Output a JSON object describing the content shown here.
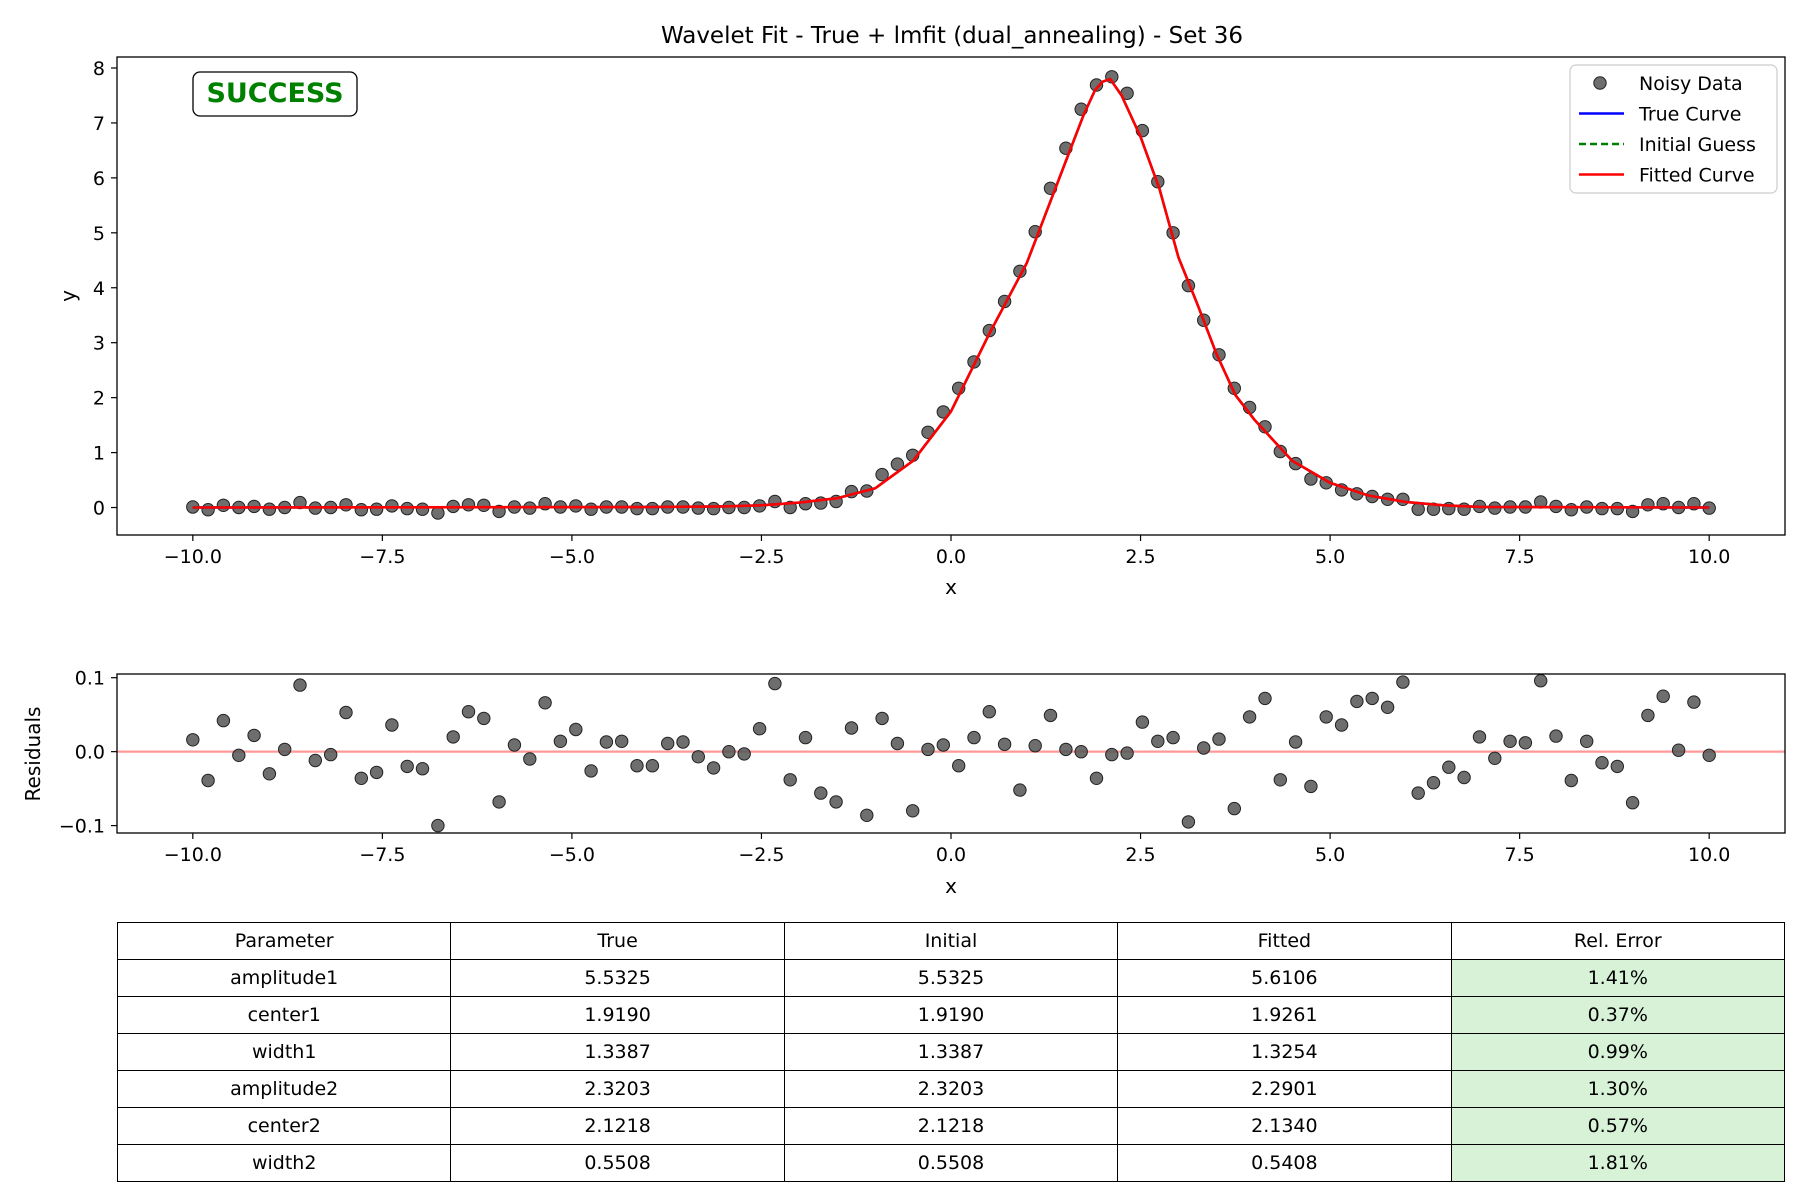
{
  "chart_data": [
    {
      "type": "scatter",
      "title": "Wavelet Fit - True + lmfit (dual_annealing) - Set 36",
      "xlabel": "x",
      "ylabel": "y",
      "xlim": [
        -11,
        11
      ],
      "ylim": [
        -0.5,
        8.2
      ],
      "xticks": [
        -10.0,
        -7.5,
        -5.0,
        -2.5,
        0.0,
        2.5,
        5.0,
        7.5,
        10.0
      ],
      "yticks": [
        0,
        1,
        2,
        3,
        4,
        5,
        6,
        7,
        8
      ],
      "grid": false,
      "legend_position": "top-right",
      "status_label": "SUCCESS",
      "colors": {
        "noisy": "#555555",
        "true": "#0000ff",
        "initial": "#008000",
        "fitted": "#ff0000",
        "status": "#008000"
      },
      "series": [
        {
          "name": "Noisy Data",
          "style": "markers",
          "x": [
            -10.0,
            -9.798,
            -9.596,
            -9.394,
            -9.192,
            -8.99,
            -8.788,
            -8.586,
            -8.384,
            -8.182,
            -7.98,
            -7.778,
            -7.576,
            -7.374,
            -7.172,
            -6.97,
            -6.768,
            -6.566,
            -6.364,
            -6.162,
            -5.96,
            -5.758,
            -5.556,
            -5.354,
            -5.152,
            -4.949,
            -4.747,
            -4.545,
            -4.343,
            -4.141,
            -3.939,
            -3.737,
            -3.535,
            -3.333,
            -3.131,
            -2.929,
            -2.727,
            -2.525,
            -2.323,
            -2.121,
            -1.919,
            -1.717,
            -1.515,
            -1.313,
            -1.111,
            -0.909,
            -0.707,
            -0.505,
            -0.303,
            -0.101,
            0.101,
            0.303,
            0.505,
            0.707,
            0.909,
            1.111,
            1.313,
            1.515,
            1.717,
            1.919,
            2.121,
            2.323,
            2.525,
            2.727,
            2.929,
            3.131,
            3.333,
            3.535,
            3.737,
            3.939,
            4.141,
            4.343,
            4.545,
            4.747,
            4.949,
            5.152,
            5.354,
            5.556,
            5.758,
            5.96,
            6.162,
            6.364,
            6.566,
            6.768,
            6.97,
            7.172,
            7.374,
            7.576,
            7.778,
            7.98,
            8.182,
            8.384,
            8.586,
            8.788,
            8.99,
            9.192,
            9.394,
            9.596,
            9.798,
            10.0
          ],
          "y": [
            0.01,
            -0.04,
            0.04,
            0.0,
            0.02,
            -0.03,
            0.0,
            0.09,
            -0.01,
            0.0,
            0.05,
            -0.04,
            -0.03,
            0.03,
            -0.02,
            -0.03,
            -0.1,
            0.02,
            0.05,
            0.04,
            -0.07,
            0.01,
            -0.01,
            0.07,
            0.01,
            0.03,
            -0.03,
            0.01,
            0.01,
            -0.02,
            -0.02,
            0.01,
            0.01,
            -0.01,
            -0.02,
            0.0,
            0.0,
            0.03,
            0.11,
            0.0,
            0.07,
            0.08,
            0.11,
            0.29,
            0.3,
            0.6,
            0.79,
            0.95,
            1.37,
            1.74,
            2.17,
            2.65,
            3.22,
            3.75,
            4.3,
            5.02,
            5.81,
            6.54,
            7.25,
            7.69,
            7.84,
            7.54,
            6.86,
            5.93,
            5.0,
            4.04,
            3.41,
            2.78,
            2.17,
            1.82,
            1.47,
            1.02,
            0.8,
            0.52,
            0.45,
            0.32,
            0.25,
            0.2,
            0.15,
            0.15,
            -0.03,
            -0.03,
            -0.02,
            -0.03,
            0.02,
            -0.01,
            0.01,
            0.01,
            0.1,
            0.02,
            -0.04,
            0.01,
            -0.02,
            -0.02,
            -0.07,
            0.05,
            0.07,
            0.0,
            0.07,
            -0.01
          ]
        },
        {
          "name": "True Curve",
          "style": "line",
          "x": [
            -10.0,
            -4.0,
            -3.0,
            -2.5,
            -2.0,
            -1.5,
            -1.0,
            -0.5,
            0.0,
            0.5,
            1.0,
            1.5,
            1.75,
            1.9,
            2.0,
            2.1,
            2.25,
            2.5,
            2.75,
            3.0,
            3.25,
            3.5,
            3.75,
            4.0,
            4.5,
            5.0,
            5.5,
            6.0,
            6.5,
            7.0,
            10.0
          ],
          "y": [
            0.0,
            0.01,
            0.02,
            0.04,
            0.09,
            0.17,
            0.35,
            0.85,
            1.75,
            3.15,
            4.45,
            6.25,
            7.15,
            7.6,
            7.75,
            7.8,
            7.5,
            6.75,
            5.8,
            4.55,
            3.7,
            2.8,
            2.05,
            1.6,
            0.85,
            0.45,
            0.22,
            0.1,
            0.04,
            0.01,
            0.0
          ]
        },
        {
          "name": "Initial Guess",
          "style": "dashed",
          "x": [
            -10.0,
            -4.0,
            -3.0,
            -2.5,
            -2.0,
            -1.5,
            -1.0,
            -0.5,
            0.0,
            0.5,
            1.0,
            1.5,
            1.75,
            1.9,
            2.0,
            2.1,
            2.25,
            2.5,
            2.75,
            3.0,
            3.25,
            3.5,
            3.75,
            4.0,
            4.5,
            5.0,
            5.5,
            6.0,
            6.5,
            7.0,
            10.0
          ],
          "y": [
            0.0,
            0.01,
            0.02,
            0.04,
            0.09,
            0.17,
            0.35,
            0.85,
            1.75,
            3.15,
            4.45,
            6.25,
            7.15,
            7.6,
            7.75,
            7.8,
            7.5,
            6.75,
            5.8,
            4.55,
            3.7,
            2.8,
            2.05,
            1.6,
            0.85,
            0.45,
            0.22,
            0.1,
            0.04,
            0.01,
            0.0
          ]
        },
        {
          "name": "Fitted Curve",
          "style": "line",
          "x": [
            -10.0,
            -4.0,
            -3.0,
            -2.5,
            -2.0,
            -1.5,
            -1.0,
            -0.5,
            0.0,
            0.5,
            1.0,
            1.5,
            1.75,
            1.9,
            2.0,
            2.1,
            2.25,
            2.5,
            2.75,
            3.0,
            3.25,
            3.5,
            3.75,
            4.0,
            4.5,
            5.0,
            5.5,
            6.0,
            6.5,
            7.0,
            10.0
          ],
          "y": [
            0.0,
            0.01,
            0.02,
            0.04,
            0.09,
            0.17,
            0.35,
            0.85,
            1.75,
            3.15,
            4.45,
            6.25,
            7.15,
            7.6,
            7.75,
            7.8,
            7.5,
            6.75,
            5.8,
            4.55,
            3.7,
            2.8,
            2.05,
            1.6,
            0.85,
            0.45,
            0.22,
            0.1,
            0.04,
            0.01,
            0.0
          ]
        }
      ]
    },
    {
      "type": "scatter",
      "xlabel": "x",
      "ylabel": "Residuals",
      "xlim": [
        -11,
        11
      ],
      "ylim": [
        -0.11,
        0.105
      ],
      "xticks": [
        -10.0,
        -7.5,
        -5.0,
        -2.5,
        0.0,
        2.5,
        5.0,
        7.5,
        10.0
      ],
      "yticks": [
        -0.1,
        0.0,
        0.1
      ],
      "grid": false,
      "reference_line": 0.0,
      "colors": {
        "points": "#555555",
        "reference": "#ff9999"
      },
      "series": [
        {
          "style": "markers",
          "x": [
            -10.0,
            -9.798,
            -9.596,
            -9.394,
            -9.192,
            -8.99,
            -8.788,
            -8.586,
            -8.384,
            -8.182,
            -7.98,
            -7.778,
            -7.576,
            -7.374,
            -7.172,
            -6.97,
            -6.768,
            -6.566,
            -6.364,
            -6.162,
            -5.96,
            -5.758,
            -5.556,
            -5.354,
            -5.152,
            -4.949,
            -4.747,
            -4.545,
            -4.343,
            -4.141,
            -3.939,
            -3.737,
            -3.535,
            -3.333,
            -3.131,
            -2.929,
            -2.727,
            -2.525,
            -2.323,
            -2.121,
            -1.919,
            -1.717,
            -1.515,
            -1.313,
            -1.111,
            -0.909,
            -0.707,
            -0.505,
            -0.303,
            -0.101,
            0.101,
            0.303,
            0.505,
            0.707,
            0.909,
            1.111,
            1.313,
            1.515,
            1.717,
            1.919,
            2.121,
            2.323,
            2.525,
            2.727,
            2.929,
            3.131,
            3.333,
            3.535,
            3.737,
            3.939,
            4.141,
            4.343,
            4.545,
            4.747,
            4.949,
            5.152,
            5.354,
            5.556,
            5.758,
            5.96,
            6.162,
            6.364,
            6.566,
            6.768,
            6.97,
            7.172,
            7.374,
            7.576,
            7.778,
            7.98,
            8.182,
            8.384,
            8.586,
            8.788,
            8.99,
            9.192,
            9.394,
            9.596,
            9.798,
            10.0
          ],
          "y": [
            0.016,
            -0.039,
            0.042,
            -0.005,
            0.022,
            -0.03,
            0.003,
            0.09,
            -0.012,
            -0.004,
            0.053,
            -0.036,
            -0.028,
            0.036,
            -0.02,
            -0.023,
            -0.1,
            0.02,
            0.054,
            0.045,
            -0.068,
            0.009,
            -0.01,
            0.066,
            0.014,
            0.03,
            -0.026,
            0.013,
            0.014,
            -0.019,
            -0.019,
            0.011,
            0.013,
            -0.007,
            -0.022,
            0.0,
            -0.003,
            0.031,
            0.092,
            -0.038,
            0.019,
            -0.056,
            -0.068,
            0.032,
            -0.086,
            0.045,
            0.011,
            -0.08,
            0.003,
            0.009,
            -0.019,
            0.019,
            0.054,
            0.01,
            -0.052,
            0.008,
            0.049,
            0.003,
            0.0,
            -0.036,
            -0.004,
            -0.002,
            0.04,
            0.014,
            0.019,
            -0.095,
            0.005,
            0.017,
            -0.077,
            0.047,
            0.072,
            -0.038,
            0.013,
            -0.047,
            0.047,
            0.036,
            0.068,
            0.072,
            0.06,
            0.094,
            -0.056,
            -0.042,
            -0.021,
            -0.035,
            0.02,
            -0.009,
            0.014,
            0.012,
            0.096,
            0.021,
            -0.039,
            0.014,
            -0.015,
            -0.02,
            -0.069,
            0.049,
            0.075,
            0.002,
            0.067,
            -0.005
          ]
        }
      ]
    }
  ],
  "parameters_table": {
    "headers": [
      "Parameter",
      "True",
      "Initial",
      "Fitted",
      "Rel. Error"
    ],
    "rows": [
      [
        "amplitude1",
        "5.5325",
        "5.5325",
        "5.6106",
        "1.41%"
      ],
      [
        "center1",
        "1.9190",
        "1.9190",
        "1.9261",
        "0.37%"
      ],
      [
        "width1",
        "1.3387",
        "1.3387",
        "1.3254",
        "0.99%"
      ],
      [
        "amplitude2",
        "2.3203",
        "2.3203",
        "2.2901",
        "1.30%"
      ],
      [
        "center2",
        "2.1218",
        "2.1218",
        "2.1340",
        "0.57%"
      ],
      [
        "width2",
        "0.5508",
        "0.5508",
        "0.5408",
        "1.81%"
      ]
    ],
    "highlight_color": "#d8f2d8"
  }
}
